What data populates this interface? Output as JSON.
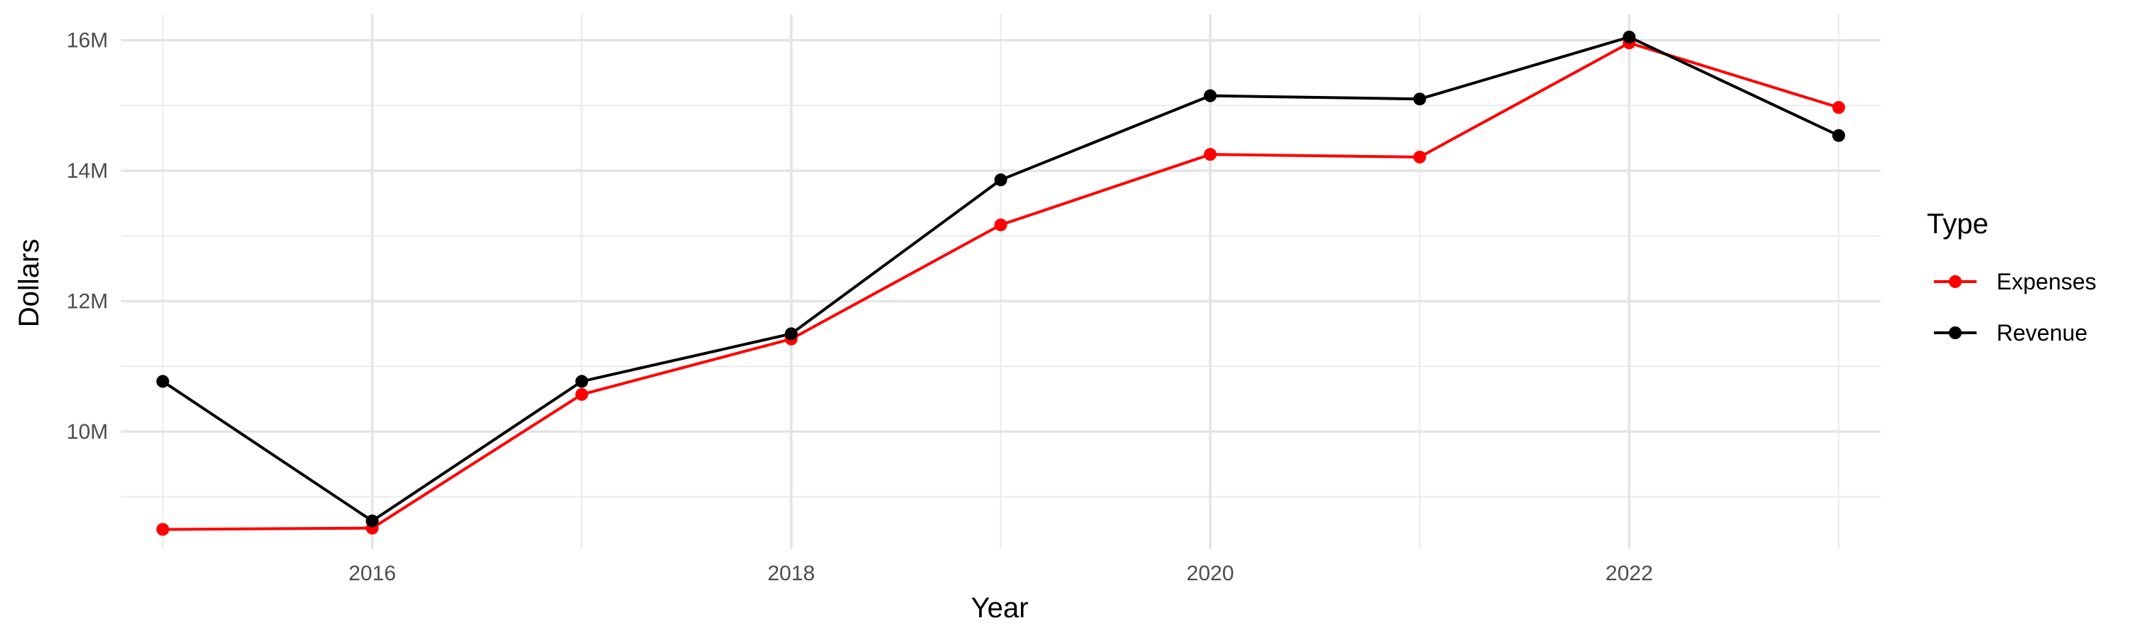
{
  "chart_data": {
    "type": "line",
    "xlabel": "Year",
    "ylabel": "Dollars",
    "x": [
      2015,
      2016,
      2017,
      2018,
      2019,
      2020,
      2021,
      2022,
      2023
    ],
    "xlim": [
      2014.8,
      2023.2
    ],
    "ylim": [
      8.2,
      16.4
    ],
    "x_ticks": [
      2016,
      2018,
      2020,
      2022
    ],
    "x_tick_labels": [
      "2016",
      "2018",
      "2020",
      "2022"
    ],
    "y_ticks": [
      10,
      12,
      14,
      16
    ],
    "y_tick_labels": [
      "10M",
      "12M",
      "14M",
      "16M"
    ],
    "y_unit": "millions of dollars",
    "grid": true,
    "legend": {
      "title": "Type",
      "position": "right",
      "entries": [
        "Expenses",
        "Revenue"
      ]
    },
    "series": [
      {
        "name": "Expenses",
        "color": "#ff0000",
        "values": [
          8.5,
          8.52,
          10.57,
          11.42,
          13.17,
          14.25,
          14.21,
          15.96,
          14.97
        ]
      },
      {
        "name": "Revenue",
        "color": "#000000",
        "values": [
          10.77,
          8.63,
          10.77,
          11.5,
          13.86,
          15.15,
          15.1,
          16.05,
          14.54
        ]
      }
    ]
  }
}
